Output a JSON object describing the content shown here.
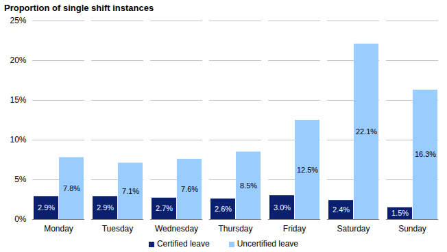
{
  "chart_data": {
    "type": "bar",
    "title": "Proportion of single shift instances",
    "categories": [
      "Monday",
      "Tuesday",
      "Wednesday",
      "Thursday",
      "Friday",
      "Saturday",
      "Sunday"
    ],
    "series": [
      {
        "name": "Certified leave",
        "color": "#0a1f6e",
        "values": [
          2.9,
          2.9,
          2.7,
          2.6,
          3.0,
          2.4,
          1.5
        ],
        "value_labels": [
          "2.9%",
          "2.9%",
          "2.7%",
          "2.6%",
          "3.0%",
          "2.4%",
          "1.5%"
        ]
      },
      {
        "name": "Uncertified leave",
        "color": "#99ccff",
        "values": [
          7.8,
          7.1,
          7.6,
          8.5,
          12.5,
          22.1,
          16.3
        ],
        "value_labels": [
          "7.8%",
          "7.1%",
          "7.6%",
          "8.5%",
          "12.5%",
          "22.1%",
          "16.3%"
        ]
      }
    ],
    "ylim": [
      0,
      25
    ],
    "yticks": [
      {
        "value": 0,
        "label": "0%"
      },
      {
        "value": 5,
        "label": "5%"
      },
      {
        "value": 10,
        "label": "10%"
      },
      {
        "value": 15,
        "label": "15%"
      },
      {
        "value": 20,
        "label": "20%"
      },
      {
        "value": 25,
        "label": "25%"
      }
    ],
    "grid": true,
    "legend": "bottom",
    "data_labels": true
  }
}
